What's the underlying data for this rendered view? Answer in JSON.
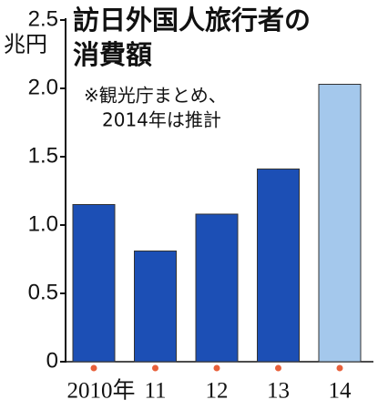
{
  "chart_data": {
    "type": "bar",
    "title": [
      "訪日外国人旅行者の",
      "消費額"
    ],
    "y_label": "兆円",
    "note": [
      "※観光庁まとめ、",
      "2014年は推計"
    ],
    "categories": [
      "2010年",
      "11",
      "12",
      "13",
      "14"
    ],
    "values": [
      1.15,
      0.81,
      1.08,
      1.41,
      2.03
    ],
    "colors": [
      "#1c4fb5",
      "#1c4fb5",
      "#1c4fb5",
      "#1c4fb5",
      "#a4c8ec"
    ],
    "ylim": [
      0,
      2.5
    ],
    "yticks": [
      0,
      0.5,
      {
        "value": 1,
        "label": "1.0"
      },
      1.5,
      {
        "value": 2,
        "label": "2.0"
      },
      2.5
    ]
  }
}
